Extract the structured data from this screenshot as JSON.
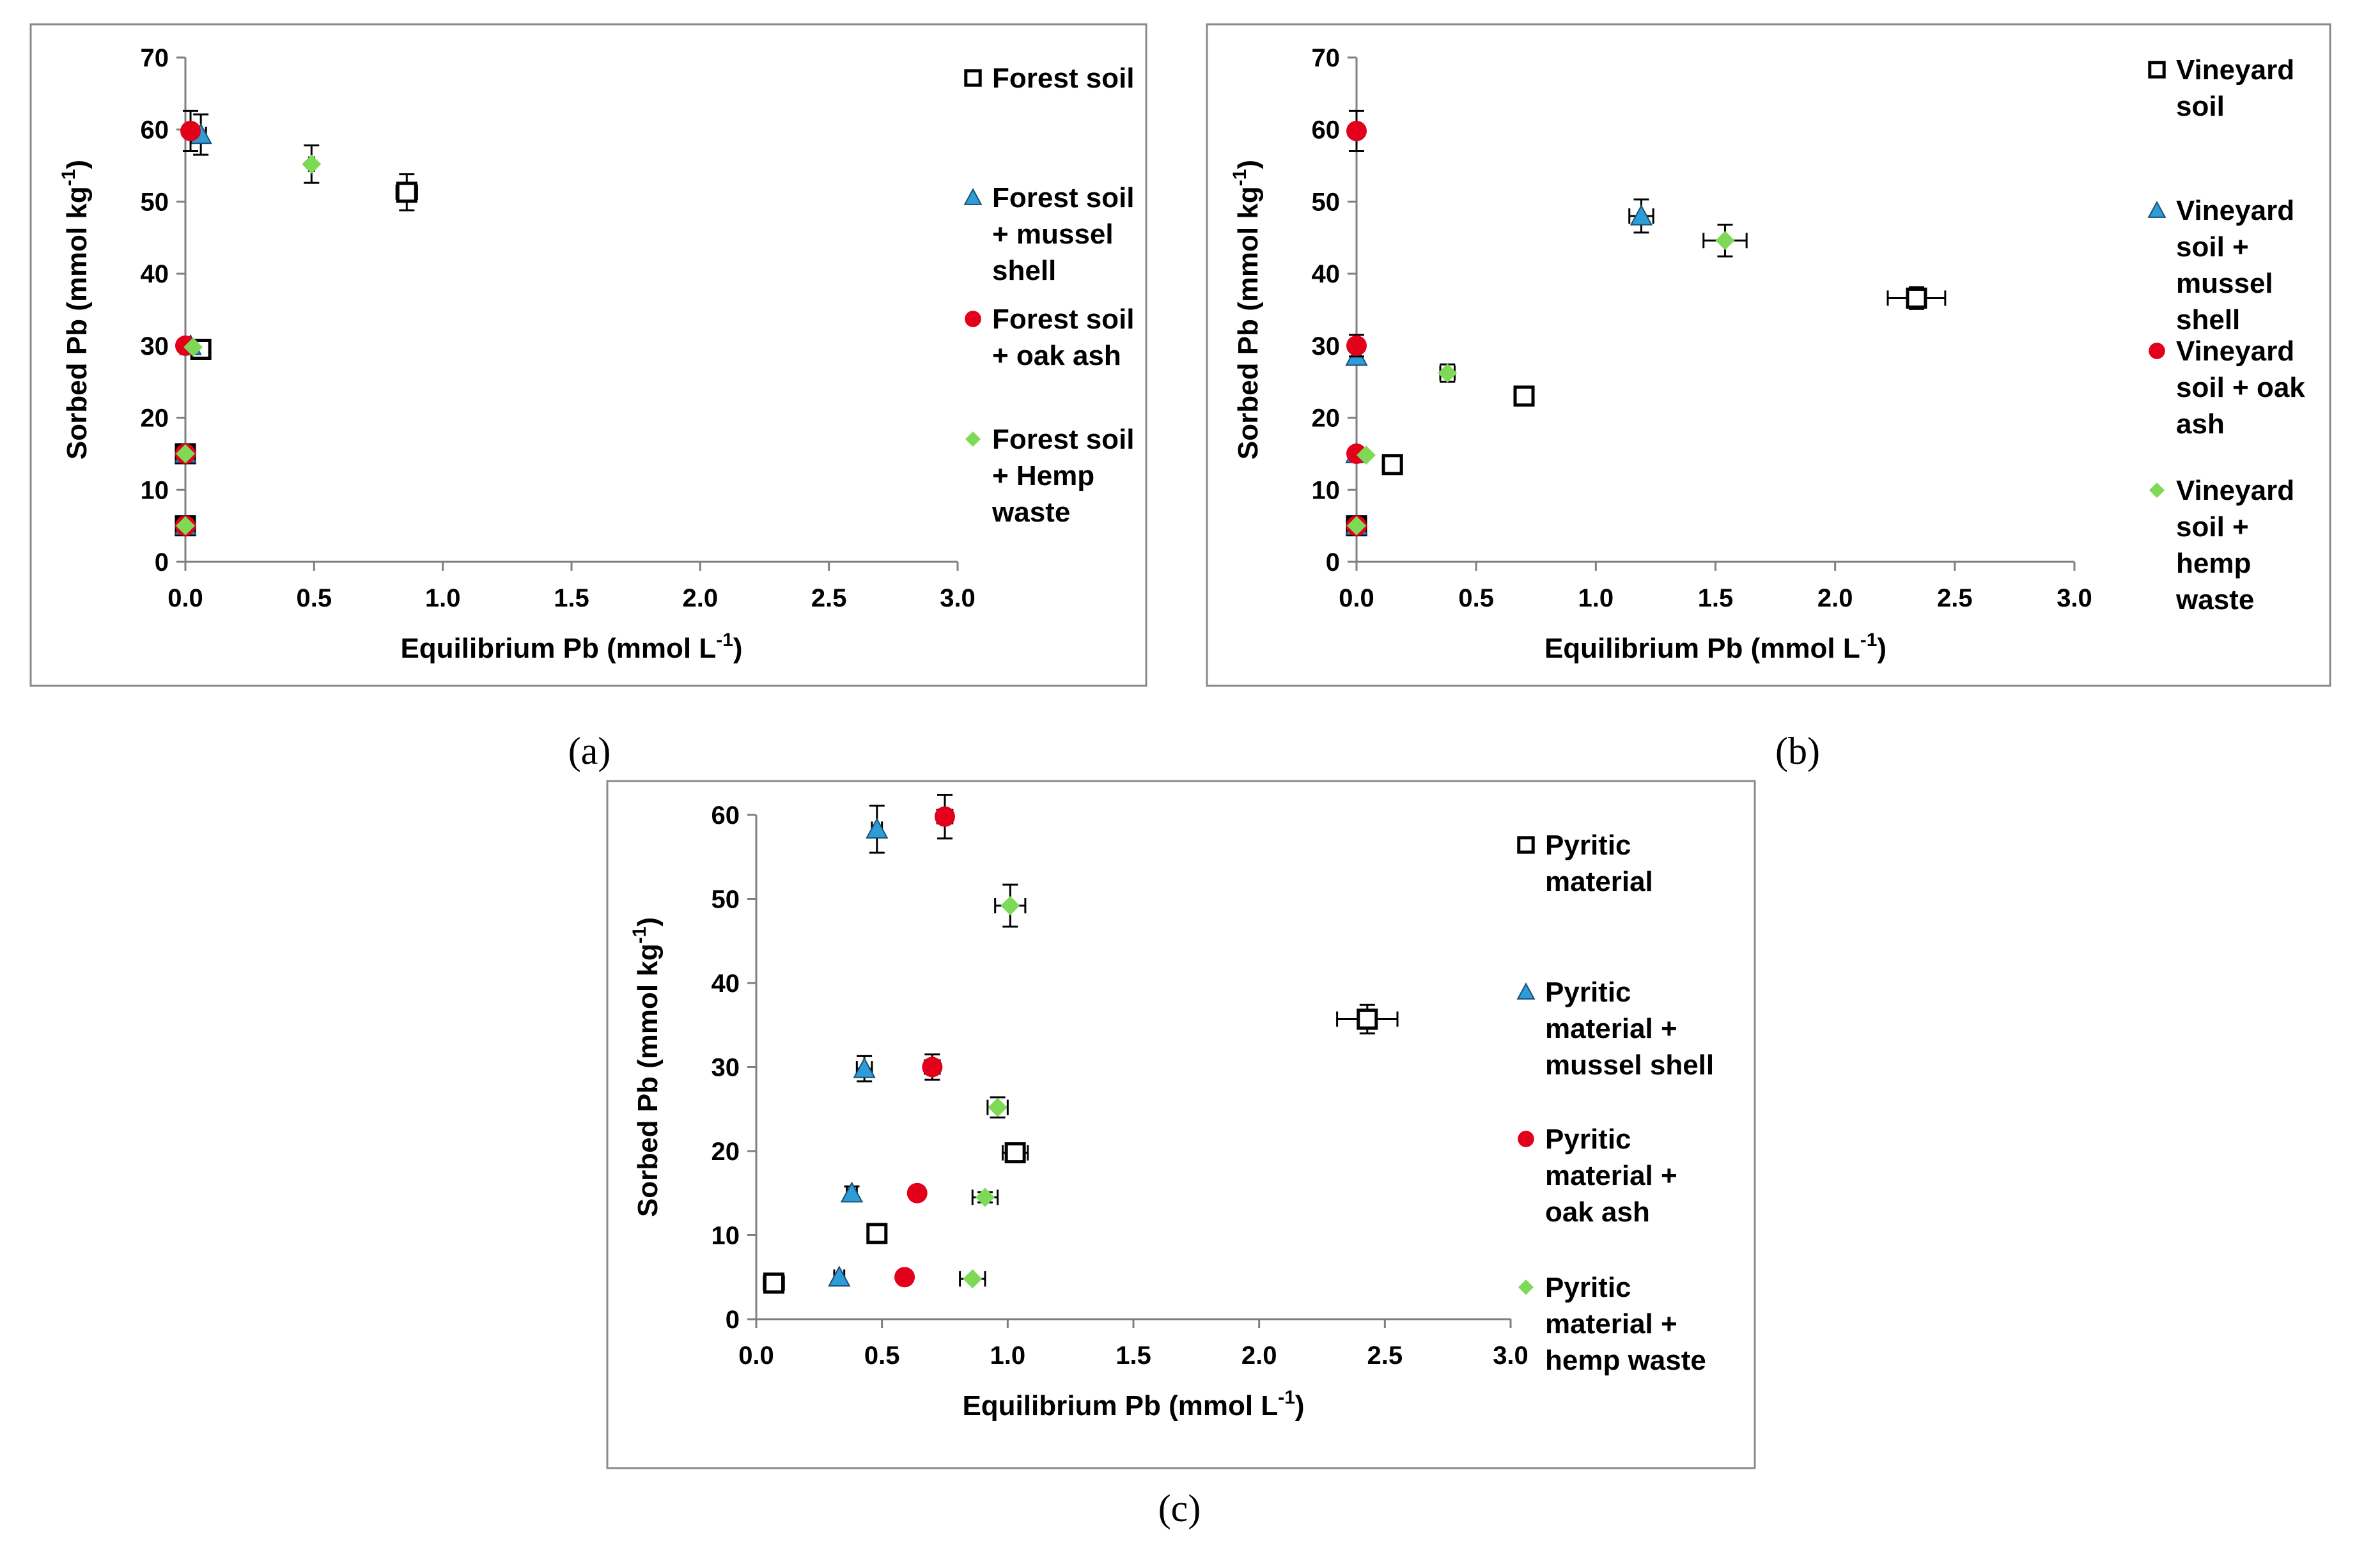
{
  "colors": {
    "forest": "#000000",
    "mussel": "#2e9cd6",
    "oak": "#e3001b",
    "hemp": "#7ed957"
  },
  "chart_data": [
    {
      "type": "scatter",
      "panel_label": "(a)",
      "xlabel": "Equilibrium Pb (mmol L",
      "xlabel_sup": "-1",
      "xlabel_end": ")",
      "ylabel": "Sorbed Pb (mmol kg",
      "ylabel_sup": "-1",
      "ylabel_end": ")",
      "xlim": [
        0,
        3
      ],
      "ylim": [
        0,
        70
      ],
      "xticks": [
        "0.0",
        "0.5",
        "1.0",
        "1.5",
        "2.0",
        "2.5",
        "3.0"
      ],
      "yticks": [
        "0",
        "10",
        "20",
        "30",
        "40",
        "50",
        "60",
        "70"
      ],
      "grid": false,
      "legend_position": "right",
      "series": [
        {
          "name": "Forest soil",
          "legend_lines": [
            "Forest soil"
          ],
          "marker": "square",
          "color_key": "forest",
          "x": [
            0.0,
            0.0,
            0.06,
            0.86
          ],
          "y": [
            5,
            15,
            29.5,
            51.3
          ],
          "xerr": [
            0,
            0,
            0.02,
            0.04
          ],
          "yerr": [
            0.5,
            0.8,
            1.2,
            2.5
          ]
        },
        {
          "name": "Forest soil + mussel shell",
          "legend_lines": [
            "Forest soil",
            "+ mussel",
            "shell"
          ],
          "marker": "triangle",
          "color_key": "mussel",
          "x": [
            0.0,
            0.0,
            0.02,
            0.06
          ],
          "y": [
            5,
            15,
            30,
            59.3
          ],
          "xerr": [
            0,
            0,
            0,
            0.02
          ],
          "yerr": [
            0,
            0,
            0,
            2.8
          ]
        },
        {
          "name": "Forest soil + oak ash",
          "legend_lines": [
            "Forest soil",
            "+ oak ash"
          ],
          "marker": "circle",
          "color_key": "oak",
          "x": [
            0.0,
            0.0,
            0.0,
            0.02
          ],
          "y": [
            5,
            15,
            30,
            59.8
          ],
          "xerr": [
            0,
            0,
            0,
            0.01
          ],
          "yerr": [
            0,
            0,
            0,
            2.8
          ]
        },
        {
          "name": "Forest soil + Hemp waste",
          "legend_lines": [
            "Forest soil",
            "+ Hemp",
            "waste"
          ],
          "marker": "diamond",
          "color_key": "hemp",
          "x": [
            0.0,
            0.0,
            0.03,
            0.49
          ],
          "y": [
            5,
            15,
            29.8,
            55.2
          ],
          "xerr": [
            0,
            0,
            0,
            0.01
          ],
          "yerr": [
            0,
            0,
            0,
            2.6
          ]
        }
      ]
    },
    {
      "type": "scatter",
      "panel_label": "(b)",
      "xlabel": "Equilibrium Pb (mmol L",
      "xlabel_sup": "-1",
      "xlabel_end": ")",
      "ylabel": "Sorbed Pb (mmol kg",
      "ylabel_sup": "-1",
      "ylabel_end": ")",
      "xlim": [
        0,
        3
      ],
      "ylim": [
        0,
        70
      ],
      "xticks": [
        "0.0",
        "0.5",
        "1.0",
        "1.5",
        "2.0",
        "2.5",
        "3.0"
      ],
      "yticks": [
        "0",
        "10",
        "20",
        "30",
        "40",
        "50",
        "60",
        "70"
      ],
      "grid": false,
      "legend_position": "right",
      "series": [
        {
          "name": "Vineyard soil",
          "legend_lines": [
            "Vineyard",
            "soil"
          ],
          "marker": "square",
          "color_key": "forest",
          "x": [
            0.0,
            0.15,
            0.7,
            2.34
          ],
          "y": [
            5,
            13.5,
            23,
            36.6
          ],
          "xerr": [
            0,
            0.04,
            0.04,
            0.12
          ],
          "yerr": [
            0,
            1.2,
            1.0,
            1.5
          ]
        },
        {
          "name": "Vineyard soil + mussel shell",
          "legend_lines": [
            "Vineyard",
            "soil +",
            "mussel",
            "shell"
          ],
          "marker": "triangle",
          "color_key": "mussel",
          "x": [
            0.0,
            0.0,
            0.0,
            1.19
          ],
          "y": [
            5,
            15,
            28.5,
            48
          ],
          "xerr": [
            0,
            0,
            0,
            0.05
          ],
          "yerr": [
            0,
            0,
            0,
            2.3
          ]
        },
        {
          "name": "Vineyard soil + oak ash",
          "legend_lines": [
            "Vineyard",
            "soil + oak",
            "ash"
          ],
          "marker": "circle",
          "color_key": "oak",
          "x": [
            0.0,
            0.0,
            0.0,
            0.0
          ],
          "y": [
            5,
            15,
            30,
            59.8
          ],
          "xerr": [
            0,
            0,
            0,
            0
          ],
          "yerr": [
            0,
            0,
            1.5,
            2.8
          ]
        },
        {
          "name": "Vineyard soil + hemp waste",
          "legend_lines": [
            "Vineyard",
            "soil +",
            "hemp",
            "waste"
          ],
          "marker": "diamond",
          "color_key": "hemp",
          "x": [
            0.0,
            0.04,
            0.38,
            1.54
          ],
          "y": [
            5,
            14.8,
            26.2,
            44.6
          ],
          "xerr": [
            0,
            0,
            0.03,
            0.09
          ],
          "yerr": [
            0,
            0,
            1.2,
            2.2
          ]
        }
      ]
    },
    {
      "type": "scatter",
      "panel_label": "(c)",
      "xlabel": "Equilibrium Pb (mmol L",
      "xlabel_sup": "-1",
      "xlabel_end": ")",
      "ylabel": "Sorbed Pb (mmol kg",
      "ylabel_sup": "-1",
      "ylabel_end": ")",
      "xlim": [
        0,
        3
      ],
      "ylim": [
        0,
        60
      ],
      "xticks": [
        "0.0",
        "0.5",
        "1.0",
        "1.5",
        "2.0",
        "2.5",
        "3.0"
      ],
      "yticks": [
        "0",
        "10",
        "20",
        "30",
        "40",
        "50",
        "60"
      ],
      "grid": false,
      "legend_position": "right",
      "series": [
        {
          "name": "Pyritic material",
          "legend_lines": [
            "Pyritic",
            "material"
          ],
          "marker": "square",
          "color_key": "forest",
          "x": [
            0.07,
            0.48,
            1.03,
            2.43
          ],
          "y": [
            4.3,
            10.2,
            19.8,
            35.7
          ],
          "xerr": [
            0.04,
            0.03,
            0.05,
            0.12
          ],
          "yerr": [
            0.8,
            1.0,
            1.0,
            1.7
          ]
        },
        {
          "name": "Pyritic material + mussel shell",
          "legend_lines": [
            "Pyritic",
            "material +",
            "mussel shell"
          ],
          "marker": "triangle",
          "color_key": "mussel",
          "x": [
            0.33,
            0.38,
            0.43,
            0.48
          ],
          "y": [
            5,
            15,
            29.8,
            58.3
          ],
          "xerr": [
            0.02,
            0.02,
            0.03,
            0.02
          ],
          "yerr": [
            0,
            0.8,
            1.5,
            2.8
          ]
        },
        {
          "name": "Pyritic material + oak ash",
          "legend_lines": [
            "Pyritic",
            "material +",
            "oak ash"
          ],
          "marker": "circle",
          "color_key": "oak",
          "x": [
            0.59,
            0.64,
            0.7,
            0.75
          ],
          "y": [
            5,
            15,
            30,
            59.8
          ],
          "xerr": [
            0.02,
            0.02,
            0.03,
            0.03
          ],
          "yerr": [
            0,
            0.5,
            1.5,
            2.6
          ]
        },
        {
          "name": "Pyritic material + hemp waste",
          "legend_lines": [
            "Pyritic",
            "material +",
            "hemp waste"
          ],
          "marker": "diamond",
          "color_key": "hemp",
          "x": [
            0.86,
            0.91,
            0.96,
            1.01
          ],
          "y": [
            4.8,
            14.5,
            25.2,
            49.2
          ],
          "xerr": [
            0.05,
            0.05,
            0.04,
            0.06
          ],
          "yerr": [
            0,
            0.6,
            1.2,
            2.5
          ]
        }
      ]
    }
  ]
}
